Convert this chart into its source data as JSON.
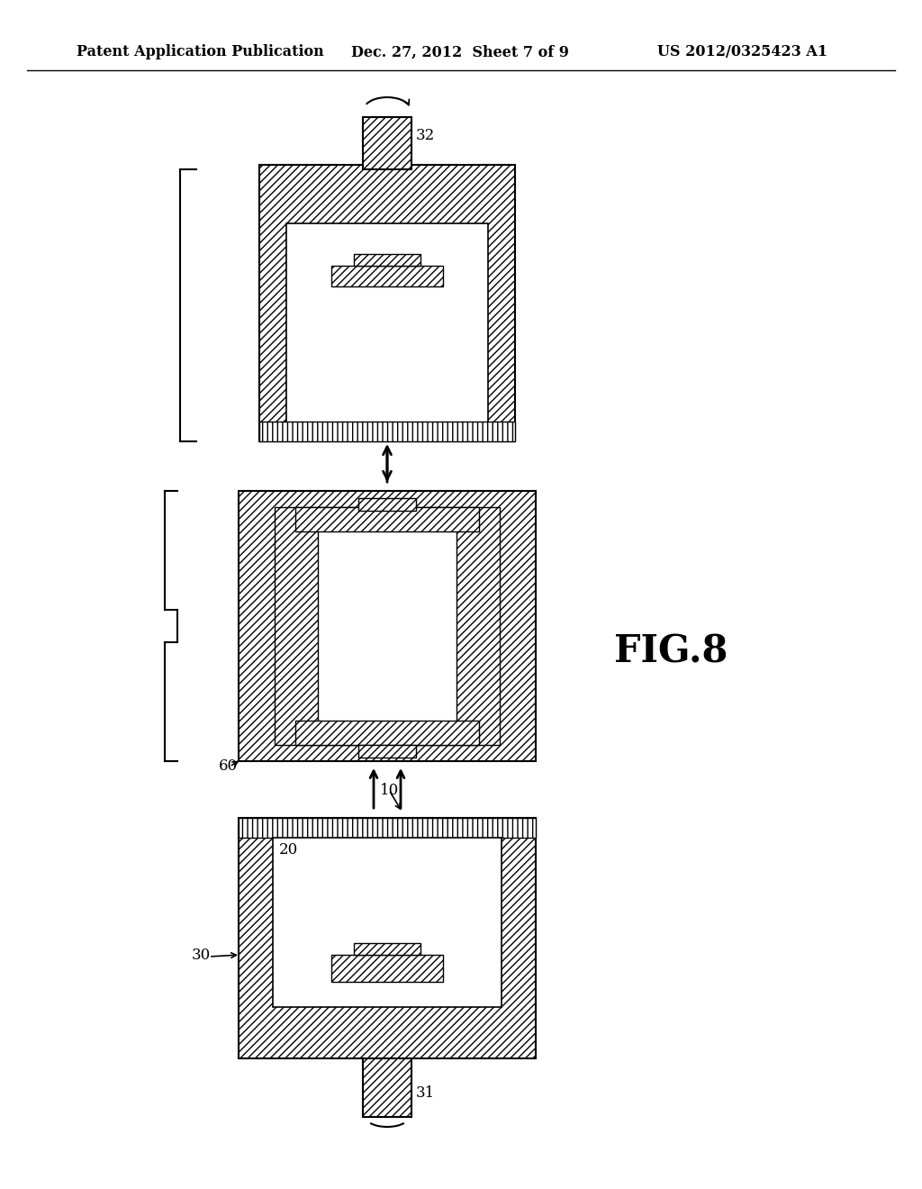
{
  "title_left": "Patent Application Publication",
  "title_center": "Dec. 27, 2012  Sheet 7 of 9",
  "title_right": "US 2012/0325423 A1",
  "fig_label": "FIG.8",
  "label_32": "32",
  "label_60": "60",
  "label_10": "10",
  "label_20": "20",
  "label_30": "30",
  "label_31": "31",
  "bg_color": "#ffffff",
  "hatch_color": "#000000",
  "line_color": "#000000"
}
